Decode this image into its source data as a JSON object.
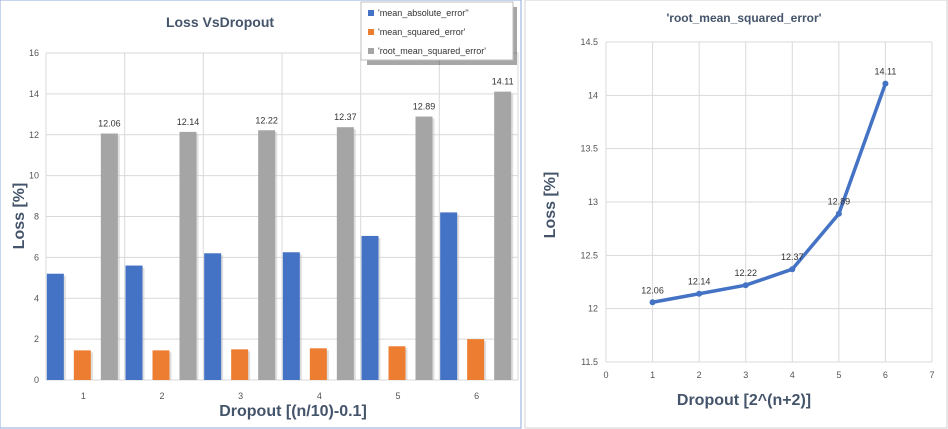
{
  "chart_data": [
    {
      "type": "bar",
      "title": "Loss VsDropout",
      "xlabel": "Dropout [(n/10)-0.1]",
      "ylabel": "Loss [%]",
      "categories": [
        "1",
        "2",
        "3",
        "4",
        "5",
        "6"
      ],
      "ylim": [
        0,
        16
      ],
      "yticks": [
        "0",
        "2",
        "4",
        "6",
        "8",
        "10",
        "12",
        "14",
        "16"
      ],
      "grid": true,
      "legend_position": "top-right",
      "series": [
        {
          "name": "'mean_absolute_error''",
          "values": [
            5.2,
            5.6,
            6.2,
            6.25,
            7.05,
            8.2
          ],
          "color": "#4472c4"
        },
        {
          "name": "'mean_squared_error'",
          "values": [
            1.45,
            1.45,
            1.5,
            1.55,
            1.65,
            2.0
          ],
          "color": "#ed7d31"
        },
        {
          "name": "'root_mean_squared_error'",
          "values": [
            12.06,
            12.14,
            12.22,
            12.37,
            12.89,
            14.11
          ],
          "color": "#a5a5a5"
        }
      ],
      "data_labels": [
        "12.06",
        "12.14",
        "12.22",
        "12.37",
        "12.89",
        "14.11"
      ]
    },
    {
      "type": "line",
      "title": "'root_mean_squared_error'",
      "xlabel": "Dropout [2^(n+2)]",
      "ylabel": "Loss [%]",
      "x": [
        1,
        2,
        3,
        4,
        5,
        6
      ],
      "y": [
        12.06,
        12.14,
        12.22,
        12.37,
        12.89,
        14.11
      ],
      "xlim": [
        0,
        7
      ],
      "ylim": [
        11.5,
        14.5
      ],
      "xticks": [
        "0",
        "1",
        "2",
        "3",
        "4",
        "5",
        "6",
        "7"
      ],
      "yticks": [
        "11.5",
        "12",
        "12.5",
        "13",
        "13.5",
        "14",
        "14.5"
      ],
      "grid": true,
      "color": "#4472c4",
      "data_labels": [
        "12.06",
        "12.14",
        "12.22",
        "12.37",
        "12.89",
        "14.11"
      ]
    }
  ]
}
